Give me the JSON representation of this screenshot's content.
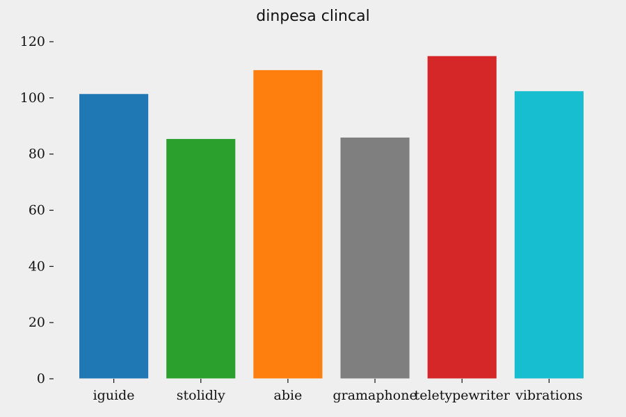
{
  "chart_data": {
    "type": "bar",
    "title": "dinpesa clincal",
    "xlabel": "",
    "ylabel": "",
    "categories": [
      "iguide",
      "stolidly",
      "abie",
      "gramaphone",
      "teletypewriter",
      "vibrations"
    ],
    "values": [
      101.5,
      85.5,
      110,
      86,
      115,
      102.5
    ],
    "colors": [
      "#1f77b4",
      "#2ca02c",
      "#ff7f0e",
      "#7f7f7f",
      "#d62728",
      "#17becf"
    ],
    "ylim": [
      0,
      120
    ],
    "yticks": [
      0,
      20,
      40,
      60,
      80,
      100,
      120
    ],
    "grid": false,
    "legend": "none"
  }
}
